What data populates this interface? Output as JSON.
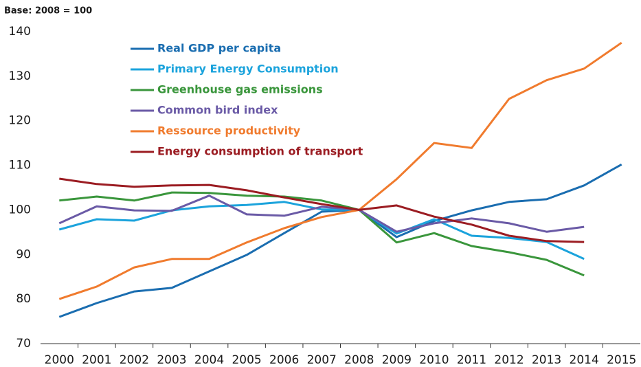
{
  "chart_data": {
    "type": "line",
    "title": "Base: 2008 = 100",
    "categories": [
      "2000",
      "2001",
      "2002",
      "2003",
      "2004",
      "2005",
      "2006",
      "2007",
      "2008",
      "2009",
      "2010",
      "2011",
      "2012",
      "2013",
      "2014",
      "2015"
    ],
    "ylim": [
      70,
      140
    ],
    "yticks": [
      70,
      80,
      90,
      100,
      110,
      120,
      130,
      140
    ],
    "grid": false,
    "series": [
      {
        "name": "Real GDP per capita",
        "color": "#1a6db0",
        "values": [
          76,
          79.1,
          81.7,
          82.5,
          86.2,
          89.9,
          94.8,
          99.6,
          100,
          93.9,
          97.5,
          99.9,
          101.8,
          102.4,
          105.5,
          110.2
        ]
      },
      {
        "name": "Primary Energy Consumption",
        "color": "#1ba3dc",
        "values": [
          95.6,
          97.9,
          97.6,
          99.9,
          100.8,
          101.1,
          101.8,
          100.1,
          100,
          94.7,
          97.9,
          94.2,
          93.7,
          92.8,
          89,
          null
        ]
      },
      {
        "name": "Greenhouse gas emissions",
        "color": "#3a963c",
        "values": [
          102.1,
          103,
          102.1,
          103.9,
          103.8,
          103.2,
          103,
          102.1,
          100,
          92.7,
          94.8,
          91.9,
          90.5,
          88.8,
          85.3,
          null
        ]
      },
      {
        "name": "Common bird index",
        "color": "#6a5aa6",
        "values": [
          97,
          100.8,
          99.9,
          99.8,
          103.2,
          99,
          98.7,
          100.7,
          100,
          95.1,
          97,
          98.1,
          97,
          95.1,
          96.2,
          null
        ]
      },
      {
        "name": "Ressource productivity",
        "color": "#f07b2e",
        "values": [
          80,
          82.8,
          87.1,
          89,
          89,
          92.7,
          95.9,
          98.4,
          100,
          106.9,
          115,
          113.9,
          124.9,
          129.1,
          131.7,
          137.5
        ]
      },
      {
        "name": "Energy consumption of transport",
        "color": "#9b1c22",
        "values": [
          107,
          105.8,
          105.2,
          105.5,
          105.6,
          104.4,
          102.8,
          101.3,
          100,
          101,
          98.5,
          96.7,
          94.2,
          93,
          92.8,
          null
        ]
      }
    ]
  }
}
